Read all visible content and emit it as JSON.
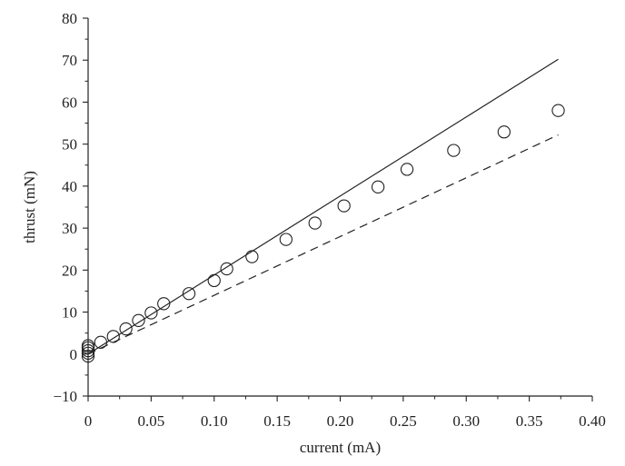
{
  "chart_data": {
    "type": "scatter",
    "title": "",
    "xlabel": "current (mA)",
    "ylabel": "thrust (mN)",
    "xlim": [
      0,
      0.4
    ],
    "ylim": [
      -10,
      80
    ],
    "xticks": [
      {
        "value": 0,
        "label": "0"
      },
      {
        "value": 0.05,
        "label": "0.05"
      },
      {
        "value": 0.1,
        "label": "0.10"
      },
      {
        "value": 0.15,
        "label": "0.15"
      },
      {
        "value": 0.2,
        "label": "0.20"
      },
      {
        "value": 0.25,
        "label": "0.25"
      },
      {
        "value": 0.3,
        "label": "0.30"
      },
      {
        "value": 0.35,
        "label": "0.35"
      },
      {
        "value": 0.4,
        "label": "0.40"
      }
    ],
    "yticks": [
      {
        "value": -10,
        "label": "−10"
      },
      {
        "value": 0,
        "label": "0"
      },
      {
        "value": 10,
        "label": "10"
      },
      {
        "value": 20,
        "label": "20"
      },
      {
        "value": 30,
        "label": "30"
      },
      {
        "value": 40,
        "label": "40"
      },
      {
        "value": 50,
        "label": "50"
      },
      {
        "value": 60,
        "label": "60"
      },
      {
        "value": 70,
        "label": "70"
      },
      {
        "value": 80,
        "label": "80"
      }
    ],
    "grid": false,
    "legend": "none",
    "series": [
      {
        "style": "markers-open-circle",
        "color": "#222222",
        "x": [
          0,
          0,
          0,
          0,
          0,
          0.01,
          0.02,
          0.03,
          0.04,
          0.05,
          0.06,
          0.08,
          0.1,
          0.11,
          0.13,
          0.157,
          0.18,
          0.203,
          0.23,
          0.253,
          0.29,
          0.33,
          0.373
        ],
        "y": [
          -0.5,
          0.2,
          0.8,
          1.5,
          2.0,
          2.8,
          4.2,
          6.0,
          8.0,
          9.8,
          12.0,
          14.4,
          17.5,
          20.3,
          23.2,
          27.3,
          31.2,
          35.3,
          39.8,
          44.0,
          48.5,
          52.9,
          58.0
        ]
      },
      {
        "style": "solid-line",
        "color": "#222222",
        "x": [
          0,
          0.373
        ],
        "y": [
          0,
          70.2
        ]
      },
      {
        "style": "dashed-line",
        "color": "#222222",
        "x": [
          0,
          0.373
        ],
        "y": [
          0,
          52.2
        ]
      }
    ]
  }
}
